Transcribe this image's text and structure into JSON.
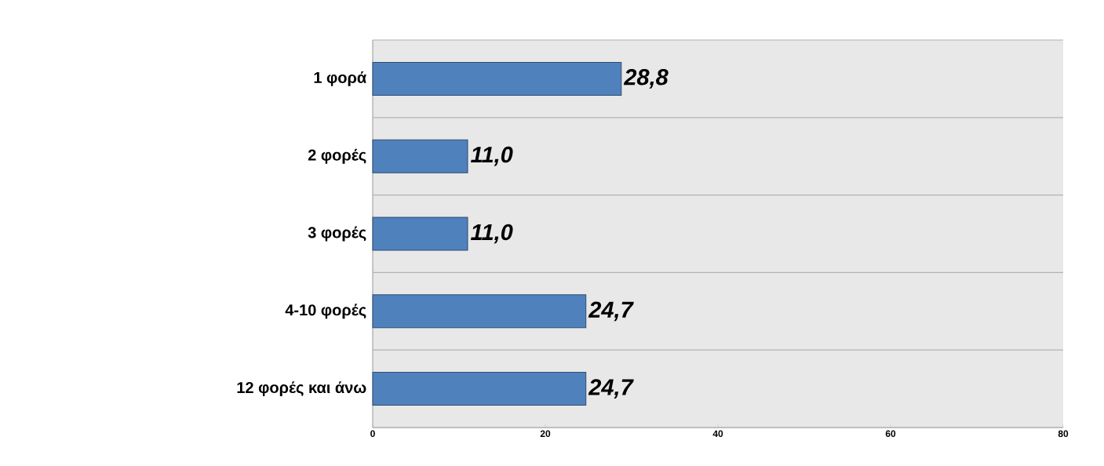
{
  "chart_data": {
    "type": "bar",
    "orientation": "horizontal",
    "categories": [
      "1 φορά",
      "2 φορές",
      "3 φορές",
      "4-10 φορές",
      "12 φορές και άνω"
    ],
    "values": [
      28.8,
      11.0,
      11.0,
      24.7,
      24.7
    ],
    "value_labels": [
      "28,8",
      "11,0",
      "11,0",
      "24,7",
      "24,7"
    ],
    "color": "#4f81bd",
    "xlim": [
      0,
      80
    ],
    "xticks": [
      0,
      20,
      40,
      60,
      80
    ],
    "grid": "y"
  }
}
